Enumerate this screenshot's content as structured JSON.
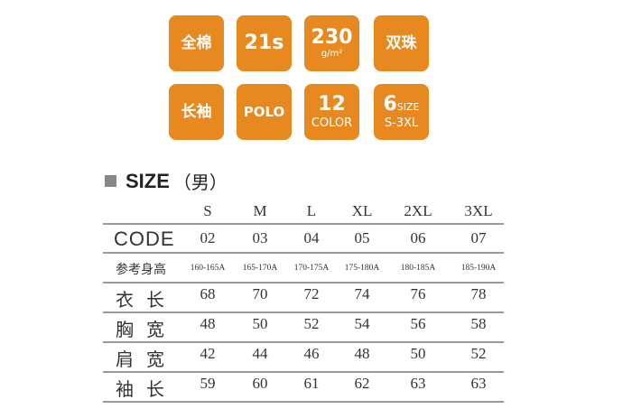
{
  "tiles": {
    "cotton": "全棉",
    "yarn": "21s",
    "weight": "230",
    "weight_unit": "g/m²",
    "fabric": "双珠",
    "sleeve": "长袖",
    "style": "POLO",
    "colors_num": "12",
    "colors_label": "COLOR",
    "sizes_num": "6",
    "sizes_label": "SIZE",
    "size_range": "S-3XL"
  },
  "accent_color": "#E8891F",
  "size_chart": {
    "title": "SIZE",
    "gender": "（男）",
    "sizes": [
      "S",
      "M",
      "L",
      "XL",
      "2XL",
      "3XL"
    ],
    "rows": [
      {
        "label": "CODE",
        "values": [
          "02",
          "03",
          "04",
          "05",
          "06",
          "07"
        ]
      },
      {
        "label": "参考身高",
        "values": [
          "160-165A",
          "165-170A",
          "170-175A",
          "175-180A",
          "180-185A",
          "185-190A"
        ]
      },
      {
        "label": "衣长",
        "values": [
          "68",
          "70",
          "72",
          "74",
          "76",
          "78"
        ]
      },
      {
        "label": "胸宽",
        "values": [
          "48",
          "50",
          "52",
          "54",
          "56",
          "58"
        ]
      },
      {
        "label": "肩宽",
        "values": [
          "42",
          "44",
          "46",
          "48",
          "50",
          "52"
        ]
      },
      {
        "label": "袖长",
        "values": [
          "59",
          "60",
          "61",
          "62",
          "63",
          "63"
        ]
      }
    ]
  }
}
